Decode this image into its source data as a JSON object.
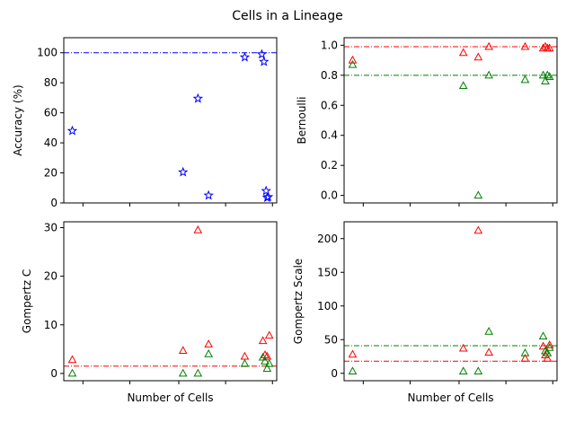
{
  "figure": {
    "title": "Cells in a Lineage"
  },
  "chart_data": [
    {
      "type": "scatter",
      "ylabel": "Accuracy (%)",
      "xlabel": "",
      "xlim": [
        0,
        100
      ],
      "ylim": [
        0,
        110
      ],
      "yticks": [
        "0",
        "20",
        "40",
        "60",
        "80",
        "100"
      ],
      "ytick_values": [
        0,
        20,
        40,
        60,
        80,
        100
      ],
      "xtick_values": [
        9,
        31,
        54,
        76,
        98
      ],
      "xtick_labels": false,
      "series": [
        {
          "color": "#0000ff",
          "marker": "star",
          "x": [
            4,
            56,
            63,
            68,
            85,
            93,
            94,
            95,
            95.5,
            96
          ],
          "y": [
            48,
            20.5,
            69.5,
            5,
            97,
            99,
            94,
            8,
            3.5,
            4
          ]
        }
      ],
      "hlines": [
        {
          "y": 100,
          "color": "#0000ff",
          "style": "dashdot"
        }
      ]
    },
    {
      "type": "scatter",
      "ylabel": "Bernoulli",
      "xlabel": "",
      "xlim": [
        0,
        100
      ],
      "ylim": [
        -0.05,
        1.05
      ],
      "yticks": [
        "0.0",
        "0.2",
        "0.4",
        "0.6",
        "0.8",
        "1.0"
      ],
      "ytick_values": [
        0,
        0.2,
        0.4,
        0.6,
        0.8,
        1.0
      ],
      "xtick_values": [
        9,
        31,
        54,
        76,
        98
      ],
      "xtick_labels": false,
      "series": [
        {
          "color": "#ff0000",
          "marker": "triangle",
          "x": [
            4,
            56,
            63,
            68,
            85,
            93.5,
            94.5,
            95.5,
            96.5
          ],
          "y": [
            0.9,
            0.95,
            0.92,
            0.99,
            0.99,
            0.98,
            0.99,
            0.98,
            0.98
          ]
        },
        {
          "color": "#008000",
          "marker": "triangle",
          "x": [
            4,
            56,
            63,
            68,
            85,
            93.5,
            94.5,
            95.5,
            96.5
          ],
          "y": [
            0.87,
            0.73,
            0.0,
            0.8,
            0.77,
            0.8,
            0.76,
            0.8,
            0.79
          ]
        }
      ],
      "hlines": [
        {
          "y": 0.99,
          "color": "#ff0000",
          "style": "dashdot"
        },
        {
          "y": 0.8,
          "color": "#008000",
          "style": "dashdot"
        }
      ]
    },
    {
      "type": "scatter",
      "ylabel": "Gompertz C",
      "xlabel": "Number of Cells",
      "xlim": [
        0,
        100
      ],
      "ylim": [
        -1.5,
        31.2
      ],
      "yticks": [
        "0",
        "10",
        "20",
        "30"
      ],
      "ytick_values": [
        0,
        10,
        20,
        30
      ],
      "xtick_values": [
        9,
        31,
        54,
        76,
        98
      ],
      "xtick_labels": false,
      "series": [
        {
          "color": "#ff0000",
          "marker": "triangle",
          "x": [
            4,
            56,
            63,
            68,
            85,
            93.5,
            94.5,
            95.5,
            96.5
          ],
          "y": [
            2.8,
            4.7,
            29.5,
            6.0,
            3.5,
            6.7,
            3.8,
            3.5,
            7.8
          ]
        },
        {
          "color": "#008000",
          "marker": "triangle",
          "x": [
            4,
            56,
            63,
            68,
            85,
            93.5,
            94.5,
            95.5,
            96.5
          ],
          "y": [
            0.0,
            0.0,
            0.0,
            4.0,
            2.0,
            3.3,
            2.5,
            1.0,
            2.0
          ]
        }
      ],
      "hlines": [
        {
          "y": 1.5,
          "color": "#ff0000",
          "style": "dashdot"
        }
      ]
    },
    {
      "type": "scatter",
      "ylabel": "Gompertz Scale",
      "xlabel": "Number of Cells",
      "xlim": [
        0,
        100
      ],
      "ylim": [
        -11,
        225
      ],
      "yticks": [
        "0",
        "50",
        "100",
        "150",
        "200"
      ],
      "ytick_values": [
        0,
        50,
        100,
        150,
        200
      ],
      "xtick_values": [
        9,
        31,
        54,
        76,
        98
      ],
      "xtick_labels": false,
      "series": [
        {
          "color": "#ff0000",
          "marker": "triangle",
          "x": [
            4,
            56,
            63,
            68,
            85,
            93.5,
            94.5,
            95.5,
            96.5
          ],
          "y": [
            28,
            37,
            212,
            31,
            22,
            40,
            27,
            22,
            42
          ]
        },
        {
          "color": "#008000",
          "marker": "triangle",
          "x": [
            4,
            56,
            63,
            68,
            85,
            93.5,
            94.5,
            95.5,
            96.5
          ],
          "y": [
            3,
            3,
            3,
            62,
            30,
            55,
            33,
            30,
            38
          ]
        }
      ],
      "hlines": [
        {
          "y": 41,
          "color": "#008000",
          "style": "dashdot"
        },
        {
          "y": 18,
          "color": "#ff0000",
          "style": "dashdot"
        }
      ]
    }
  ]
}
